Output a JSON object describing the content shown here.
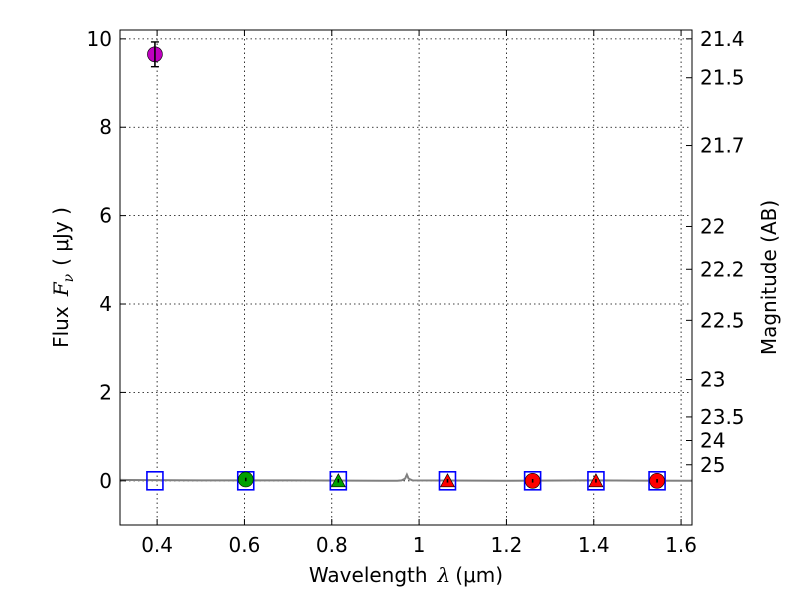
{
  "chart_data": {
    "type": "scatter",
    "title": "",
    "xlabel": "Wavelength  λ (μm)",
    "xlabel_prefix": "Wavelength",
    "xlabel_symbol": "λ",
    "xlabel_unit": "(μm)",
    "ylabel": "Flux  Fν  ( μJy )",
    "ylabel_prefix": "Flux",
    "ylabel_symbol": "F",
    "ylabel_symbol_sub": "ν",
    "ylabel_unit": "( μJy )",
    "y2label": "Magnitude (AB)",
    "xlim": [
      0.315,
      1.625
    ],
    "ylim": [
      -1,
      10.2
    ],
    "grid": true,
    "x_ticks": [
      0.4,
      0.6,
      0.8,
      1.0,
      1.2,
      1.4,
      1.6
    ],
    "x_tick_labels": [
      "0.4",
      "0.6",
      "0.8",
      "1",
      "1.2",
      "1.4",
      "1.6"
    ],
    "y_ticks": [
      0,
      2,
      4,
      6,
      8,
      10
    ],
    "y_tick_labels": [
      "0",
      "2",
      "4",
      "6",
      "8",
      "10"
    ],
    "mag_ticks": [
      21.4,
      21.5,
      21.7,
      22,
      22.2,
      22.5,
      23,
      23.5,
      24,
      25
    ],
    "mag_tick_labels": [
      "21.4",
      "21.5",
      "21.7",
      "22",
      "22.2",
      "22.5",
      "23",
      "23.5",
      "24",
      "25"
    ],
    "series": [
      {
        "name": "violet circle",
        "marker": "circle",
        "color": "#bf00bf",
        "points": [
          {
            "x": 0.395,
            "y": 9.65,
            "err": 0.28
          }
        ]
      },
      {
        "name": "green circle",
        "marker": "circle",
        "color": "#00a000",
        "points": [
          {
            "x": 0.603,
            "y": 0.03,
            "err": 0.04
          }
        ]
      },
      {
        "name": "green triangle",
        "marker": "triangle",
        "color": "#00a000",
        "points": [
          {
            "x": 0.815,
            "y": 0.0,
            "err": 0.04
          }
        ]
      },
      {
        "name": "red triangles",
        "marker": "triangle",
        "color": "#ff0000",
        "points": [
          {
            "x": 1.065,
            "y": 0.0,
            "err": 0.04
          },
          {
            "x": 1.405,
            "y": 0.0,
            "err": 0.04
          }
        ]
      },
      {
        "name": "red circles",
        "marker": "circle",
        "color": "#ff0000",
        "points": [
          {
            "x": 1.26,
            "y": 0.0,
            "err": 0.04
          },
          {
            "x": 1.545,
            "y": 0.0,
            "err": 0.04
          }
        ]
      },
      {
        "name": "model squares",
        "marker": "square",
        "color": "#0000ff",
        "points": [
          {
            "x": 0.395,
            "y": 0.0
          },
          {
            "x": 0.603,
            "y": 0.0
          },
          {
            "x": 0.815,
            "y": 0.0
          },
          {
            "x": 1.065,
            "y": 0.0
          },
          {
            "x": 1.26,
            "y": 0.0
          },
          {
            "x": 1.405,
            "y": 0.0
          },
          {
            "x": 1.545,
            "y": 0.0
          }
        ]
      }
    ],
    "spectrum": {
      "name": "model spectrum",
      "color": "#808080",
      "x": [
        0.315,
        0.5,
        0.7,
        0.95,
        0.96,
        0.968,
        0.972,
        0.976,
        0.985,
        1.2,
        1.4,
        1.625
      ],
      "y": [
        0.02,
        0.01,
        0.01,
        0.0,
        0.01,
        0.05,
        0.14,
        0.05,
        0.01,
        0.0,
        0.01,
        0.0
      ]
    }
  }
}
